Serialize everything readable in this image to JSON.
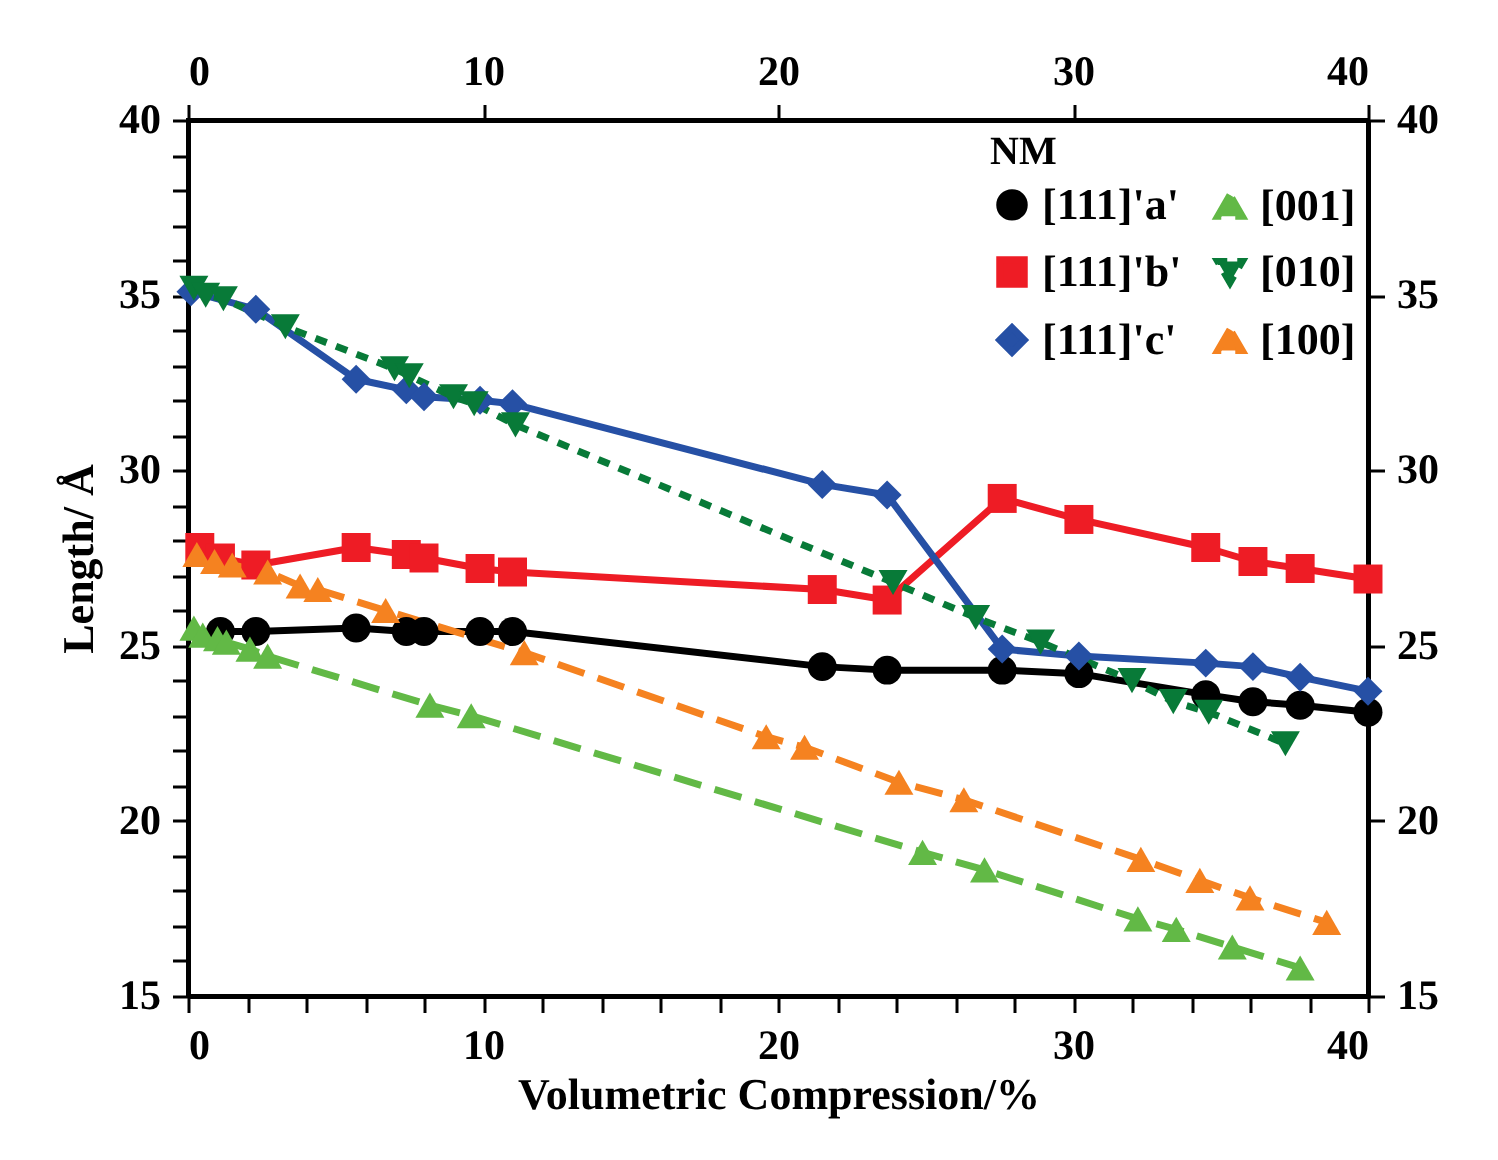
{
  "chart_data": {
    "type": "line",
    "xlabel": "Volumetric Compression/%",
    "ylabel": "Length/ Å",
    "legend_title": "NM",
    "legend": "top right",
    "grid": false,
    "xlim": [
      0,
      40
    ],
    "xticks": [
      0,
      {
        "value": 2,
        "label": null
      },
      {
        "value": 4,
        "label": null
      },
      {
        "value": 6,
        "label": null
      },
      {
        "value": 8,
        "label": null
      },
      10,
      {
        "value": 12,
        "label": null
      },
      {
        "value": 14,
        "label": null
      },
      {
        "value": 16,
        "label": null
      },
      {
        "value": 18,
        "label": null
      },
      20,
      {
        "value": 22,
        "label": null
      },
      {
        "value": 24,
        "label": null
      },
      {
        "value": 26,
        "label": null
      },
      {
        "value": 28,
        "label": null
      },
      30,
      {
        "value": 32,
        "label": null
      },
      {
        "value": 34,
        "label": null
      },
      {
        "value": 36,
        "label": null
      },
      {
        "value": 38,
        "label": null
      },
      40
    ],
    "x2lim": [
      0,
      40
    ],
    "x2ticks": [
      0,
      10,
      20,
      30,
      40
    ],
    "ylim": [
      15,
      40
    ],
    "yticks": [
      15,
      {
        "value": 16,
        "label": null
      },
      {
        "value": 17,
        "label": null
      },
      {
        "value": 18,
        "label": null
      },
      {
        "value": 19,
        "label": null
      },
      20,
      {
        "value": 21,
        "label": null
      },
      {
        "value": 22,
        "label": null
      },
      {
        "value": 23,
        "label": null
      },
      {
        "value": 24,
        "label": null
      },
      25,
      {
        "value": 26,
        "label": null
      },
      {
        "value": 27,
        "label": null
      },
      {
        "value": 28,
        "label": null
      },
      {
        "value": 29,
        "label": null
      },
      30,
      {
        "value": 31,
        "label": null
      },
      {
        "value": 32,
        "label": null
      },
      {
        "value": 33,
        "label": null
      },
      {
        "value": 34,
        "label": null
      },
      35,
      {
        "value": 36,
        "label": null
      },
      {
        "value": 37,
        "label": null
      },
      {
        "value": 38,
        "label": null
      },
      {
        "value": 39,
        "label": null
      },
      40
    ],
    "y2lim": [
      15,
      40
    ],
    "y2ticks": [
      15,
      20,
      25,
      30,
      35,
      40
    ],
    "series": [
      {
        "name": "[111]'a'",
        "color": "#000000",
        "marker": "circle",
        "line_style": "solid",
        "x": [
          1.1,
          2.3,
          5.7,
          7.4,
          8.0,
          9.9,
          11.0,
          21.5,
          23.7,
          27.6,
          30.2,
          34.5,
          36.1,
          37.7,
          40.0
        ],
        "values": [
          25.4,
          25.4,
          25.5,
          25.4,
          25.4,
          25.4,
          25.4,
          24.4,
          24.3,
          24.3,
          24.2,
          23.6,
          23.4,
          23.3,
          23.1
        ]
      },
      {
        "name": "[111]'b'",
        "color": "#ee1c25",
        "marker": "square",
        "line_style": "solid",
        "x": [
          0.4,
          1.1,
          2.3,
          5.7,
          7.4,
          8.0,
          9.9,
          11.0,
          21.5,
          23.7,
          27.6,
          30.2,
          34.5,
          36.1,
          37.7,
          40.0
        ],
        "values": [
          27.8,
          27.5,
          27.3,
          27.8,
          27.6,
          27.5,
          27.2,
          27.1,
          26.6,
          26.3,
          29.2,
          28.6,
          27.8,
          27.4,
          27.2,
          26.9
        ]
      },
      {
        "name": "[111]'c'",
        "color": "#2650a5",
        "marker": "diamond",
        "line_style": "solid",
        "x": [
          0.1,
          2.3,
          5.7,
          7.4,
          8.0,
          9.9,
          11.0,
          21.5,
          23.7,
          27.6,
          30.2,
          34.5,
          36.1,
          37.7,
          40.0
        ],
        "values": [
          35.1,
          34.6,
          32.6,
          32.3,
          32.1,
          32.0,
          31.9,
          29.6,
          29.3,
          24.9,
          24.7,
          24.5,
          24.4,
          24.1,
          23.7
        ]
      },
      {
        "name": "[001]",
        "color": "#62b946",
        "marker": "triangle",
        "line_style": "dashed",
        "x": [
          0.2,
          0.5,
          1.0,
          1.3,
          2.1,
          2.7,
          8.2,
          9.6,
          24.9,
          27.0,
          32.2,
          33.5,
          35.4,
          37.7
        ],
        "values": [
          25.5,
          25.3,
          25.2,
          25.1,
          24.9,
          24.7,
          23.3,
          23.0,
          19.1,
          18.6,
          17.2,
          16.9,
          16.4,
          15.8
        ]
      },
      {
        "name": "[010]",
        "color": "#087a38",
        "marker": "triangle-down",
        "line_style": "dotted",
        "x": [
          0.2,
          0.6,
          1.2,
          3.3,
          7.0,
          7.5,
          9.0,
          9.7,
          11.1,
          23.9,
          26.7,
          28.9,
          32.0,
          33.4,
          34.6,
          37.2
        ],
        "values": [
          35.2,
          35.0,
          34.9,
          34.1,
          32.9,
          32.7,
          32.1,
          31.9,
          31.3,
          26.8,
          25.8,
          25.1,
          24.0,
          23.4,
          23.1,
          22.2
        ]
      },
      {
        "name": "[100]",
        "color": "#f58220",
        "marker": "triangle",
        "line_style": "dashed",
        "x": [
          0.3,
          0.9,
          1.5,
          2.7,
          3.8,
          4.4,
          6.7,
          11.4,
          19.6,
          20.9,
          24.1,
          26.3,
          32.3,
          34.3,
          36.0,
          38.6
        ],
        "values": [
          27.6,
          27.4,
          27.3,
          27.1,
          26.7,
          26.6,
          26.0,
          24.8,
          22.4,
          22.1,
          21.1,
          20.6,
          18.9,
          18.3,
          17.8,
          17.1
        ]
      }
    ]
  }
}
